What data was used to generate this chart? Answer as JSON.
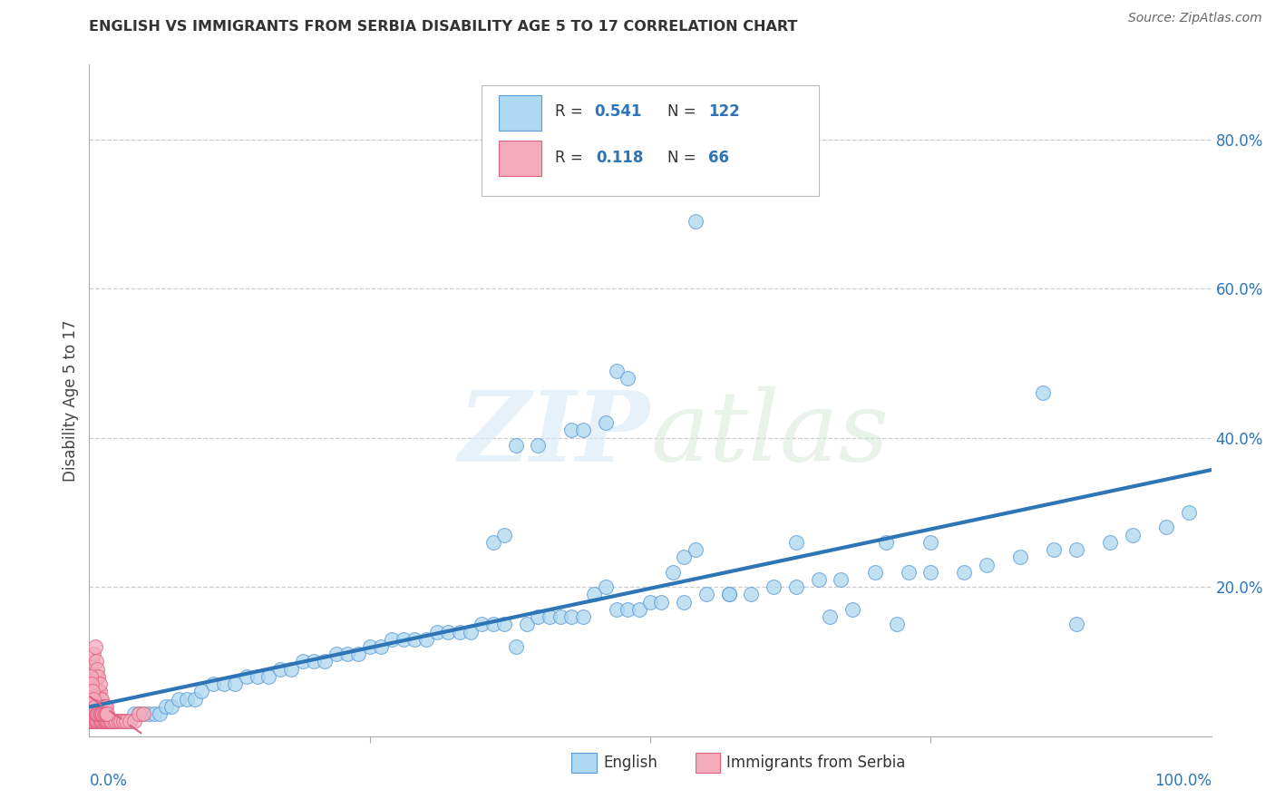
{
  "title": "ENGLISH VS IMMIGRANTS FROM SERBIA DISABILITY AGE 5 TO 17 CORRELATION CHART",
  "source": "Source: ZipAtlas.com",
  "ylabel": "Disability Age 5 to 17",
  "color_english": "#ADD8F0",
  "color_english_edge": "#5B9BD5",
  "color_english_line": "#2E75B6",
  "color_serbia": "#F4ACBB",
  "color_serbia_edge": "#E06080",
  "color_serbia_line": "#E06080",
  "color_grid": "#CCCCCC",
  "y_tick_vals": [
    0.2,
    0.4,
    0.6,
    0.8
  ],
  "y_tick_labels": [
    "20.0%",
    "40.0%",
    "60.0%",
    "80.0%"
  ],
  "xlim": [
    0.0,
    1.0
  ],
  "ylim": [
    0.0,
    0.9
  ],
  "eng_x": [
    0.001,
    0.002,
    0.003,
    0.004,
    0.005,
    0.006,
    0.007,
    0.008,
    0.009,
    0.01,
    0.011,
    0.012,
    0.013,
    0.014,
    0.015,
    0.016,
    0.017,
    0.018,
    0.019,
    0.02,
    0.022,
    0.024,
    0.026,
    0.028,
    0.03,
    0.033,
    0.036,
    0.04,
    0.044,
    0.048,
    0.053,
    0.058,
    0.063,
    0.068,
    0.073,
    0.08,
    0.087,
    0.094,
    0.1,
    0.11,
    0.12,
    0.13,
    0.14,
    0.15,
    0.16,
    0.17,
    0.18,
    0.19,
    0.2,
    0.21,
    0.22,
    0.23,
    0.24,
    0.25,
    0.26,
    0.27,
    0.28,
    0.29,
    0.3,
    0.31,
    0.32,
    0.33,
    0.34,
    0.35,
    0.36,
    0.37,
    0.38,
    0.39,
    0.4,
    0.41,
    0.42,
    0.43,
    0.44,
    0.45,
    0.46,
    0.47,
    0.48,
    0.49,
    0.5,
    0.51,
    0.53,
    0.55,
    0.57,
    0.59,
    0.61,
    0.63,
    0.65,
    0.67,
    0.7,
    0.73,
    0.75,
    0.78,
    0.8,
    0.83,
    0.86,
    0.88,
    0.91,
    0.93,
    0.96,
    0.98,
    0.38,
    0.46,
    0.54,
    0.47,
    0.48,
    0.36,
    0.37,
    0.4,
    0.43,
    0.44,
    0.71,
    0.85,
    0.52,
    0.53,
    0.54,
    0.57,
    0.63,
    0.75,
    0.66,
    0.72,
    0.68,
    0.88
  ],
  "eng_y": [
    0.02,
    0.02,
    0.02,
    0.02,
    0.02,
    0.02,
    0.02,
    0.02,
    0.02,
    0.02,
    0.02,
    0.02,
    0.02,
    0.02,
    0.02,
    0.02,
    0.02,
    0.02,
    0.02,
    0.02,
    0.02,
    0.02,
    0.02,
    0.02,
    0.02,
    0.02,
    0.02,
    0.03,
    0.03,
    0.03,
    0.03,
    0.03,
    0.03,
    0.04,
    0.04,
    0.05,
    0.05,
    0.05,
    0.06,
    0.07,
    0.07,
    0.07,
    0.08,
    0.08,
    0.08,
    0.09,
    0.09,
    0.1,
    0.1,
    0.1,
    0.11,
    0.11,
    0.11,
    0.12,
    0.12,
    0.13,
    0.13,
    0.13,
    0.13,
    0.14,
    0.14,
    0.14,
    0.14,
    0.15,
    0.15,
    0.15,
    0.12,
    0.15,
    0.16,
    0.16,
    0.16,
    0.16,
    0.16,
    0.19,
    0.2,
    0.17,
    0.17,
    0.17,
    0.18,
    0.18,
    0.18,
    0.19,
    0.19,
    0.19,
    0.2,
    0.2,
    0.21,
    0.21,
    0.22,
    0.22,
    0.22,
    0.22,
    0.23,
    0.24,
    0.25,
    0.25,
    0.26,
    0.27,
    0.28,
    0.3,
    0.39,
    0.42,
    0.69,
    0.49,
    0.48,
    0.26,
    0.27,
    0.39,
    0.41,
    0.41,
    0.26,
    0.46,
    0.22,
    0.24,
    0.25,
    0.19,
    0.26,
    0.26,
    0.16,
    0.15,
    0.17,
    0.15
  ],
  "serb_x": [
    0.001,
    0.002,
    0.003,
    0.004,
    0.005,
    0.006,
    0.007,
    0.008,
    0.009,
    0.01,
    0.011,
    0.012,
    0.013,
    0.014,
    0.015,
    0.016,
    0.017,
    0.018,
    0.019,
    0.02,
    0.022,
    0.024,
    0.026,
    0.028,
    0.03,
    0.033,
    0.036,
    0.04,
    0.044,
    0.048,
    0.003,
    0.004,
    0.005,
    0.006,
    0.007,
    0.008,
    0.009,
    0.01,
    0.011,
    0.012,
    0.013,
    0.014,
    0.015,
    0.003,
    0.004,
    0.005,
    0.006,
    0.007,
    0.008,
    0.009,
    0.001,
    0.002,
    0.003,
    0.004,
    0.005,
    0.006,
    0.007,
    0.008,
    0.009,
    0.01,
    0.011,
    0.012,
    0.013,
    0.014,
    0.015,
    0.016
  ],
  "serb_y": [
    0.02,
    0.02,
    0.02,
    0.02,
    0.02,
    0.02,
    0.02,
    0.02,
    0.02,
    0.02,
    0.02,
    0.02,
    0.02,
    0.02,
    0.02,
    0.02,
    0.02,
    0.02,
    0.02,
    0.02,
    0.02,
    0.02,
    0.02,
    0.02,
    0.02,
    0.02,
    0.02,
    0.02,
    0.03,
    0.03,
    0.05,
    0.06,
    0.07,
    0.08,
    0.08,
    0.06,
    0.06,
    0.05,
    0.05,
    0.04,
    0.04,
    0.04,
    0.04,
    0.1,
    0.11,
    0.12,
    0.1,
    0.09,
    0.08,
    0.07,
    0.08,
    0.07,
    0.06,
    0.05,
    0.04,
    0.03,
    0.03,
    0.03,
    0.03,
    0.03,
    0.03,
    0.03,
    0.03,
    0.03,
    0.03,
    0.03
  ]
}
